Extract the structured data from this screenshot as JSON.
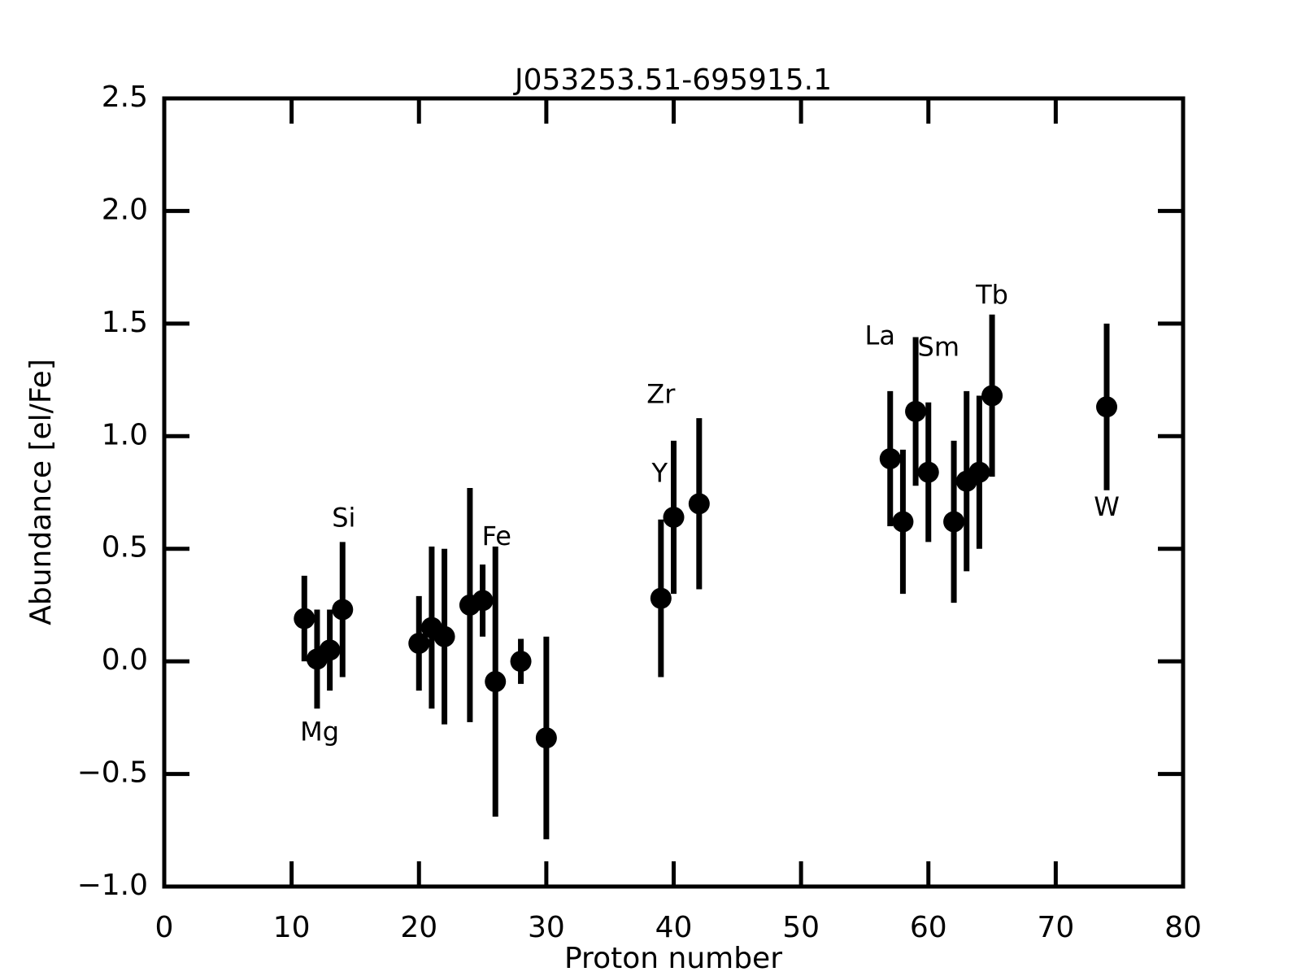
{
  "chart_data": {
    "type": "errorbar",
    "title": "J053253.51-695915.1",
    "xlabel": "Proton number",
    "ylabel": "Abundance [el/Fe]",
    "x": [
      11,
      12,
      13,
      14,
      20,
      21,
      22,
      24,
      25,
      26,
      28,
      30,
      39,
      40,
      42,
      57,
      58,
      59,
      60,
      62,
      63,
      64,
      65,
      74
    ],
    "values": [
      0.19,
      0.01,
      0.05,
      0.23,
      0.08,
      0.15,
      0.11,
      0.25,
      0.27,
      -0.09,
      0.0,
      -0.34,
      0.28,
      0.64,
      0.7,
      0.9,
      0.62,
      1.11,
      0.84,
      0.62,
      0.8,
      0.84,
      1.18,
      1.13
    ],
    "errors": [
      0.19,
      0.22,
      0.18,
      0.3,
      0.21,
      0.36,
      0.39,
      0.52,
      0.16,
      0.6,
      0.1,
      0.45,
      0.35,
      0.34,
      0.38,
      0.3,
      0.32,
      0.33,
      0.31,
      0.36,
      0.4,
      0.34,
      0.36,
      0.37
    ],
    "color": "#000000",
    "annotations": [
      "Mg",
      "Si",
      "Fe",
      "Y",
      "Zr",
      "La",
      "Sm",
      "Tb",
      "W"
    ],
    "xlim": [
      0,
      80
    ],
    "xticks": [
      0,
      10,
      20,
      30,
      40,
      50,
      60,
      70,
      80
    ],
    "ylim": [
      -1.0,
      2.5
    ],
    "yticks": [
      {
        "value": -1.0,
        "label": "−1.0"
      },
      {
        "value": -0.5,
        "label": "−0.5"
      },
      {
        "value": 0.0,
        "label": "0.0"
      },
      0.5,
      {
        "value": 1.0,
        "label": "1.0"
      },
      1.5,
      {
        "value": 2.0,
        "label": "2.0"
      },
      2.5
    ],
    "grid": false
  }
}
